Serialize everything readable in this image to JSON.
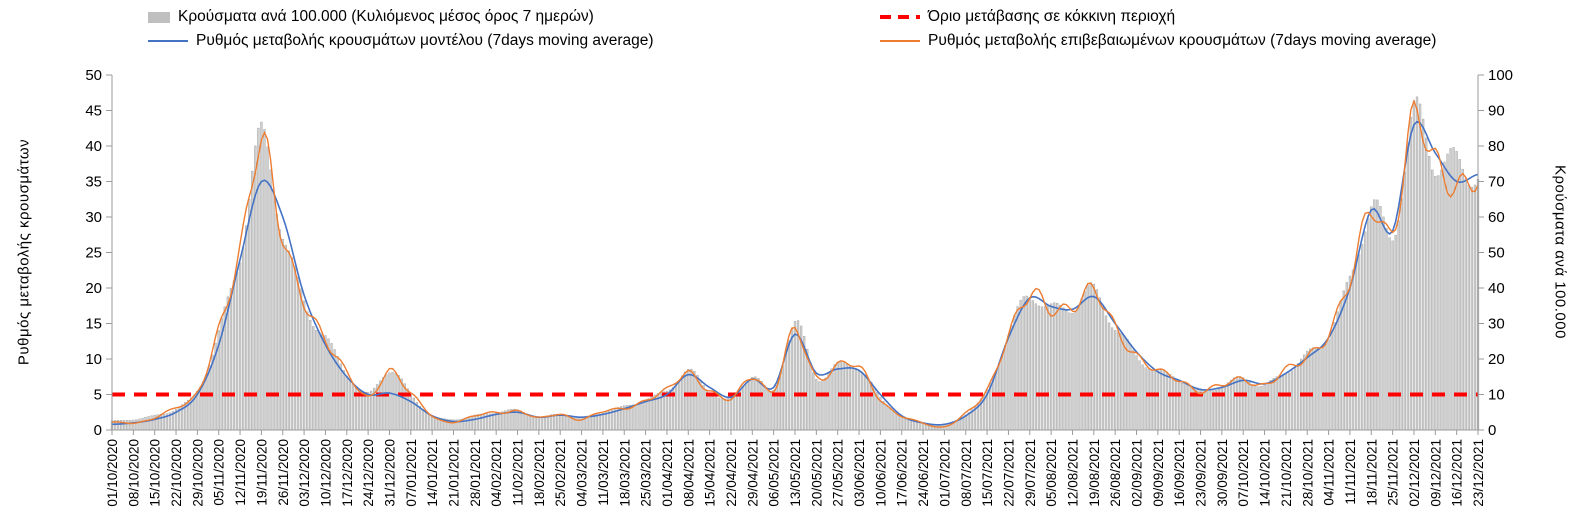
{
  "legend": {
    "bars": "Κρούσματα ανά 100.000 (Κυλιόμενος μέσος όρος 7 ημερών)",
    "threshold": "Όριο μετάβασης σε κόκκινη περιοχή",
    "model": "Ρυθμός μεταβολής κρουσμάτων μοντέλου (7days moving average)",
    "confirmed": "Ρυθμός μεταβολής επιβεβαιωμένων κρουσμάτων (7days moving average)"
  },
  "axes": {
    "left_label": "Ρυθμός μεταβολής κρουσμάτων",
    "right_label": "Κρούσματα ανά 100.000"
  },
  "colors": {
    "bar_fill": "#cfcfcf",
    "bar_stroke": "#a0a0a0",
    "model": "#4472c4",
    "confirmed": "#ed7d31",
    "threshold": "#ff0000",
    "axis": "#9b9b9b",
    "text": "#000000"
  },
  "chart_data": {
    "type": "bar",
    "combo": "daily bars (right axis) + two lines (left axis) + dashed threshold",
    "title": "",
    "grid": false,
    "legend_position": "top",
    "x": [
      "01/10/2020",
      "08/10/2020",
      "15/10/2020",
      "22/10/2020",
      "29/10/2020",
      "05/11/2020",
      "12/11/2020",
      "19/11/2020",
      "26/11/2020",
      "03/12/2020",
      "10/12/2020",
      "17/12/2020",
      "24/12/2020",
      "31/12/2020",
      "07/01/2021",
      "14/01/2021",
      "21/01/2021",
      "28/01/2021",
      "04/02/2021",
      "11/02/2021",
      "18/02/2021",
      "25/02/2021",
      "04/03/2021",
      "11/03/2021",
      "18/03/2021",
      "25/03/2021",
      "01/04/2021",
      "08/04/2021",
      "15/04/2021",
      "22/04/2021",
      "29/04/2021",
      "06/05/2021",
      "13/05/2021",
      "20/05/2021",
      "27/05/2021",
      "03/06/2021",
      "10/06/2021",
      "17/06/2021",
      "24/06/2021",
      "01/07/2021",
      "08/07/2021",
      "15/07/2021",
      "22/07/2021",
      "29/07/2021",
      "05/08/2021",
      "12/08/2021",
      "19/08/2021",
      "26/08/2021",
      "02/09/2021",
      "09/09/2021",
      "16/09/2021",
      "23/09/2021",
      "30/09/2021",
      "07/10/2021",
      "14/10/2021",
      "21/10/2021",
      "28/10/2021",
      "04/11/2021",
      "11/11/2021",
      "18/11/2021",
      "25/11/2021",
      "02/12/2021",
      "09/12/2021",
      "16/12/2021",
      "23/12/2021"
    ],
    "x_note": "weekly tick labels; bars are daily in the original, values below sampled at the weekly ticks",
    "left_axis": {
      "label": "Ρυθμός μεταβολής κρουσμάτων",
      "min": 0,
      "max": 50,
      "tick_step": 5,
      "ticks": [
        0,
        5,
        10,
        15,
        20,
        25,
        30,
        35,
        40,
        45,
        50
      ]
    },
    "right_axis": {
      "label": "Κρούσματα ανά 100.000",
      "min": 0,
      "max": 100,
      "tick_step": 10,
      "ticks": [
        0,
        10,
        20,
        30,
        40,
        50,
        60,
        70,
        80,
        90,
        100
      ]
    },
    "threshold": {
      "value": 5,
      "axis": "left",
      "label": "Όριο μετάβασης σε κόκκινη περιοχή",
      "color": "#ff0000",
      "style": "dashed"
    },
    "series": [
      {
        "name": "Κρούσματα ανά 100.000 (Κυλιόμενος μέσος όρος 7 ημερών)",
        "type": "bar",
        "axis": "right",
        "color": "#cfcfcf",
        "values": [
          2.5,
          3,
          4,
          6,
          11,
          27,
          50,
          82,
          56,
          36,
          26,
          16,
          10,
          17,
          10,
          4,
          3,
          4,
          5,
          5.5,
          3.5,
          4.5,
          3.5,
          5,
          6.5,
          8.5,
          11,
          16.5,
          11,
          8.5,
          15.5,
          11,
          30,
          15,
          18,
          17.5,
          9,
          4,
          2,
          1.5,
          4.5,
          11,
          27,
          38,
          34,
          35,
          39,
          29,
          21,
          16.5,
          14.5,
          11,
          12.5,
          14.5,
          12.5,
          16.5,
          21,
          27,
          42,
          63,
          55,
          88,
          76,
          75,
          72
        ]
      },
      {
        "name": "Ρυθμός μεταβολής κρουσμάτων μοντέλου (7days moving average)",
        "type": "line",
        "axis": "left",
        "color": "#4472c4",
        "values": [
          0.8,
          1,
          1.5,
          2.5,
          5,
          12,
          24,
          35,
          30,
          19,
          12,
          7.5,
          5,
          5.2,
          4,
          2,
          1.2,
          1.5,
          2.2,
          2.5,
          1.8,
          2.1,
          1.8,
          2.2,
          3,
          4,
          5,
          7.8,
          6,
          4.6,
          7.2,
          6,
          13.5,
          8,
          8.6,
          8.4,
          5,
          2,
          1,
          0.8,
          2,
          5,
          13,
          18.6,
          17.4,
          17,
          18.8,
          15,
          11,
          8.2,
          7,
          5.7,
          6,
          7,
          6.5,
          8,
          10.2,
          13,
          20,
          31,
          28,
          43,
          39,
          35,
          36
        ]
      },
      {
        "name": "Ρυθμός μεταβολής επιβεβαιωμένων κρουσμάτων (7days moving average)",
        "type": "line",
        "axis": "left",
        "color": "#ed7d31",
        "values": [
          0.9,
          1.2,
          1.7,
          3,
          5.5,
          14,
          25,
          41,
          27,
          18,
          13,
          8,
          4.5,
          8.5,
          5,
          2,
          1.3,
          1.8,
          2.5,
          2.8,
          1.5,
          2.3,
          1.6,
          2.4,
          3.2,
          4.2,
          5.5,
          8.2,
          5.5,
          4.2,
          7.8,
          5.5,
          14,
          7.5,
          9,
          8.8,
          4.5,
          1.8,
          0.9,
          0.7,
          2.2,
          5.5,
          13.5,
          19,
          17,
          17.5,
          19.5,
          14.5,
          10.5,
          8.2,
          7.2,
          5.5,
          6.2,
          7.3,
          6.3,
          8.3,
          10.5,
          13.5,
          21,
          31.5,
          27.5,
          44,
          38,
          34,
          35.5
        ]
      }
    ]
  }
}
